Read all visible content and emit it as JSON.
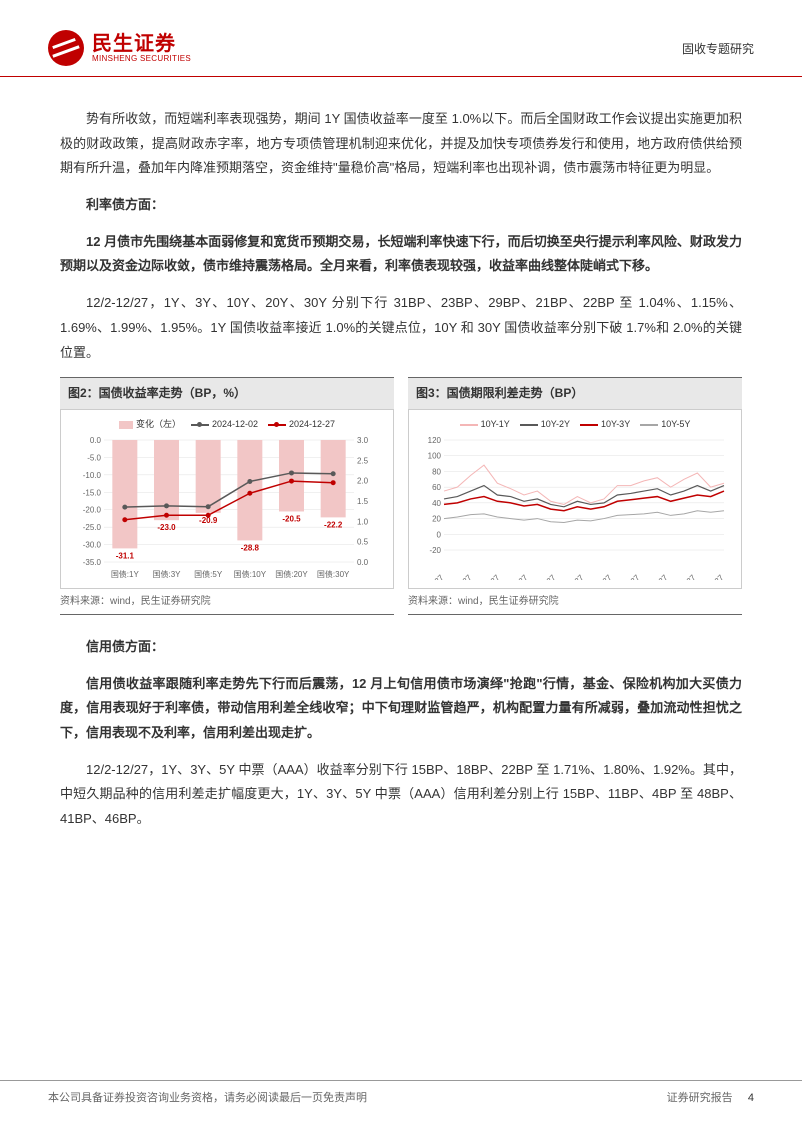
{
  "header": {
    "logo_cn": "民生证券",
    "logo_en": "MINSHENG SECURITIES",
    "category": "固收专题研究"
  },
  "body": {
    "p1": "势有所收敛，而短端利率表现强势，期间 1Y 国债收益率一度至 1.0%以下。而后全国财政工作会议提出实施更加积极的财政政策，提高财政赤字率，地方专项债管理机制迎来优化，并提及加快专项债券发行和使用，地方政府债供给预期有所升温，叠加年内降准预期落空，资金维持\"量稳价高\"格局，短端利率也出现补调，债市震荡市特征更为明显。",
    "h1": "利率债方面：",
    "p2": "12 月债市先围绕基本面弱修复和宽货币预期交易，长短端利率快速下行，而后切换至央行提示利率风险、财政发力预期以及资金边际收敛，债市维持震荡格局。全月来看，利率债表现较强，收益率曲线整体陡峭式下移。",
    "p3": "12/2-12/27，1Y、3Y、10Y、20Y、30Y 分别下行 31BP、23BP、29BP、21BP、22BP 至 1.04%、1.15%、1.69%、1.99%、1.95%。1Y 国债收益率接近 1.0%的关键点位，10Y 和 30Y 国债收益率分别下破 1.7%和 2.0%的关键位置。",
    "h2": "信用债方面：",
    "p4": "信用债收益率跟随利率走势先下行而后震荡，12 月上旬信用债市场演绎\"抢跑\"行情，基金、保险机构加大买债力度，信用表现好于利率债，带动信用利差全线收窄；中下旬理财监管趋严，机构配置力量有所减弱，叠加流动性担忧之下，信用表现不及利率，信用利差出现走扩。",
    "p5": "12/2-12/27，1Y、3Y、5Y 中票（AAA）收益率分别下行 15BP、18BP、22BP 至 1.71%、1.80%、1.92%。其中，中短久期品种的信用利差走扩幅度更大，1Y、3Y、5Y 中票（AAA）信用利差分别上行 15BP、11BP、4BP 至 48BP、41BP、46BP。"
  },
  "chart2": {
    "title": "图2：国债收益率走势（BP，%）",
    "source": "资料来源：wind，民生证券研究院",
    "legend": {
      "bar": "变化（左）",
      "line1": "2024-12-02",
      "line2": "2024-12-27"
    },
    "categories": [
      "国债:1Y",
      "国债:3Y",
      "国债:5Y",
      "国债:10Y",
      "国债:20Y",
      "国债:30Y"
    ],
    "bar_values": [
      -31.1,
      -23.0,
      -20.9,
      -28.8,
      -20.5,
      -22.2
    ],
    "line1_values": [
      1.35,
      1.38,
      1.36,
      1.98,
      2.19,
      2.17
    ],
    "line2_values": [
      1.04,
      1.15,
      1.15,
      1.69,
      1.99,
      1.95
    ],
    "left_axis": {
      "min": -35,
      "max": 0,
      "step": 5
    },
    "right_axis": {
      "min": 0.0,
      "max": 3.0,
      "step": 0.5
    },
    "bar_color": "#f2c6c6",
    "line1_color": "#595959",
    "line2_color": "#c00000",
    "grid_color": "#e0e0e0"
  },
  "chart3": {
    "title": "图3：国债期限利差走势（BP）",
    "source": "资料来源：wind，民生证券研究院",
    "legend": {
      "s1": "10Y-1Y",
      "s2": "10Y-2Y",
      "s3": "10Y-3Y",
      "s4": "10Y-5Y"
    },
    "x_labels": [
      "2023-04-27",
      "2023-06-27",
      "2023-08-27",
      "2023-10-27",
      "2023-12-27",
      "2024-02-27",
      "2024-04-27",
      "2024-06-27",
      "2024-08-27",
      "2024-10-27",
      "2024-12-27"
    ],
    "y_axis": {
      "min": -20,
      "max": 120,
      "step": 20
    },
    "colors": {
      "s1": "#f4b6b6",
      "s2": "#595959",
      "s3": "#c00000",
      "s4": "#a6a6a6"
    },
    "series": {
      "s1": [
        55,
        60,
        75,
        88,
        65,
        58,
        50,
        55,
        42,
        38,
        48,
        40,
        45,
        62,
        62,
        68,
        72,
        60,
        70,
        78,
        60,
        65
      ],
      "s2": [
        45,
        48,
        55,
        62,
        50,
        48,
        42,
        45,
        38,
        35,
        42,
        38,
        40,
        50,
        52,
        55,
        58,
        50,
        55,
        62,
        55,
        62
      ],
      "s3": [
        38,
        40,
        45,
        48,
        42,
        40,
        36,
        38,
        32,
        30,
        35,
        32,
        35,
        42,
        44,
        46,
        48,
        42,
        46,
        50,
        48,
        55
      ],
      "s4": [
        20,
        22,
        25,
        26,
        22,
        20,
        18,
        20,
        16,
        15,
        18,
        17,
        20,
        24,
        25,
        26,
        28,
        24,
        26,
        30,
        28,
        30
      ]
    }
  },
  "footer": {
    "left": "本公司具备证券投资咨询业务资格，请务必阅读最后一页免责声明",
    "right": "证券研究报告",
    "page": "4"
  }
}
